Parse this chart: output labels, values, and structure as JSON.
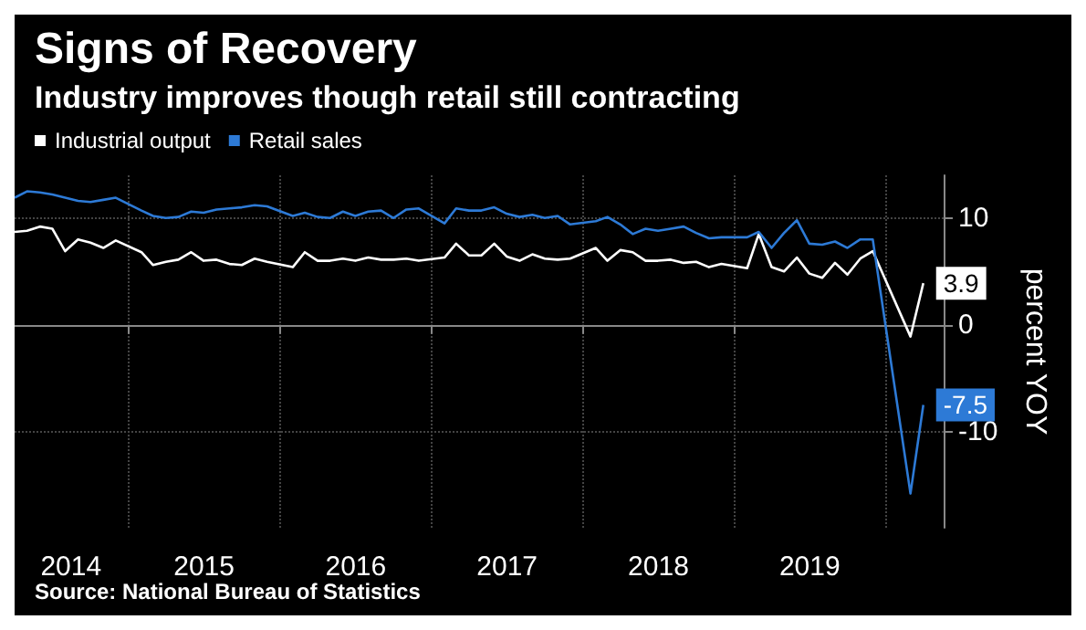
{
  "chart_data": {
    "type": "line",
    "title": "Signs of Recovery",
    "subtitle": "Industry improves though retail still contracting",
    "ylabel": "percent YOY",
    "x": [
      "2014-04",
      "2014-05",
      "2014-06",
      "2014-07",
      "2014-08",
      "2014-09",
      "2014-10",
      "2014-11",
      "2014-12",
      "2015-02",
      "2015-03",
      "2015-04",
      "2015-05",
      "2015-06",
      "2015-07",
      "2015-08",
      "2015-09",
      "2015-10",
      "2015-11",
      "2015-12",
      "2016-02",
      "2016-03",
      "2016-04",
      "2016-05",
      "2016-06",
      "2016-07",
      "2016-08",
      "2016-09",
      "2016-10",
      "2016-11",
      "2016-12",
      "2017-02",
      "2017-03",
      "2017-04",
      "2017-05",
      "2017-06",
      "2017-07",
      "2017-08",
      "2017-09",
      "2017-10",
      "2017-11",
      "2017-12",
      "2018-02",
      "2018-03",
      "2018-04",
      "2018-05",
      "2018-06",
      "2018-07",
      "2018-08",
      "2018-09",
      "2018-10",
      "2018-11",
      "2018-12",
      "2019-02",
      "2019-03",
      "2019-04",
      "2019-05",
      "2019-06",
      "2019-07",
      "2019-08",
      "2019-09",
      "2019-10",
      "2019-11",
      "2019-12",
      "2020-03",
      "2020-04"
    ],
    "series": [
      {
        "name": "Industrial output",
        "color": "#ffffff",
        "values": [
          8.7,
          8.8,
          9.2,
          9.0,
          6.9,
          8.0,
          7.7,
          7.2,
          7.9,
          6.8,
          5.6,
          5.9,
          6.1,
          6.8,
          6.0,
          6.1,
          5.7,
          5.6,
          6.2,
          5.9,
          5.4,
          6.8,
          6.0,
          6.0,
          6.2,
          6.0,
          6.3,
          6.1,
          6.1,
          6.2,
          6.0,
          6.3,
          7.6,
          6.5,
          6.5,
          7.6,
          6.4,
          6.0,
          6.6,
          6.2,
          6.1,
          6.2,
          7.2,
          6.0,
          7.0,
          6.8,
          6.0,
          6.0,
          6.1,
          5.8,
          5.9,
          5.4,
          5.7,
          5.3,
          8.5,
          5.4,
          5.0,
          6.3,
          4.8,
          4.4,
          5.8,
          4.7,
          6.2,
          6.9,
          -1.1,
          3.9
        ],
        "value_labels": [
          null,
          null,
          null,
          null,
          null,
          null,
          null,
          null,
          null,
          null,
          null,
          null,
          null,
          null,
          null,
          null,
          null,
          null,
          null,
          null,
          null,
          null,
          null,
          null,
          null,
          null,
          null,
          null,
          null,
          null,
          null,
          null,
          null,
          null,
          null,
          null,
          null,
          null,
          null,
          null,
          null,
          null,
          null,
          null,
          null,
          null,
          null,
          null,
          null,
          null,
          null,
          null,
          null,
          null,
          null,
          null,
          null,
          null,
          null,
          null,
          null,
          null,
          null,
          null,
          null,
          "3.9"
        ]
      },
      {
        "name": "Retail sales",
        "color": "#2d7ad6",
        "values": [
          11.9,
          12.5,
          12.4,
          12.2,
          11.9,
          11.6,
          11.5,
          11.7,
          11.9,
          10.7,
          10.2,
          10.0,
          10.1,
          10.6,
          10.5,
          10.8,
          10.9,
          11.0,
          11.2,
          11.1,
          10.2,
          10.5,
          10.1,
          10.0,
          10.6,
          10.2,
          10.6,
          10.7,
          10.0,
          10.8,
          10.9,
          9.5,
          10.9,
          10.7,
          10.7,
          11.0,
          10.4,
          10.1,
          10.3,
          10.0,
          10.2,
          9.4,
          9.7,
          10.1,
          9.4,
          8.5,
          9.0,
          8.8,
          9.0,
          9.2,
          8.6,
          8.1,
          8.2,
          8.2,
          8.7,
          7.2,
          8.6,
          9.8,
          7.6,
          7.5,
          7.8,
          7.2,
          8.0,
          8.0,
          -15.8,
          -7.5
        ],
        "value_labels": [
          null,
          null,
          null,
          null,
          null,
          null,
          null,
          null,
          null,
          null,
          null,
          null,
          null,
          null,
          null,
          null,
          null,
          null,
          null,
          null,
          null,
          null,
          null,
          null,
          null,
          null,
          null,
          null,
          null,
          null,
          null,
          null,
          null,
          null,
          null,
          null,
          null,
          null,
          null,
          null,
          null,
          null,
          null,
          null,
          null,
          null,
          null,
          null,
          null,
          null,
          null,
          null,
          null,
          null,
          null,
          null,
          null,
          null,
          null,
          null,
          null,
          null,
          null,
          null,
          null,
          "-7.5"
        ]
      }
    ],
    "xlim": [
      "2014-04-01",
      "2020-05-20"
    ],
    "xticks": [
      {
        "value": "2014-08-15",
        "label": "2014"
      },
      {
        "value": "2015-01-01",
        "label": null
      },
      {
        "value": "2015-07-02",
        "label": "2015"
      },
      {
        "value": "2016-01-01",
        "label": null
      },
      {
        "value": "2016-07-02",
        "label": "2016"
      },
      {
        "value": "2017-01-01",
        "label": null
      },
      {
        "value": "2017-07-02",
        "label": "2017"
      },
      {
        "value": "2018-01-01",
        "label": null
      },
      {
        "value": "2018-07-02",
        "label": "2018"
      },
      {
        "value": "2019-01-01",
        "label": null
      },
      {
        "value": "2019-07-02",
        "label": "2019"
      },
      {
        "value": "2020-01-01",
        "label": null
      }
    ],
    "ylim": [
      -19,
      14
    ],
    "yticks": [
      10,
      0,
      -10
    ],
    "grid": true,
    "legend": "top left",
    "annotations": [
      "Source: National Bureau of Statistics"
    ]
  }
}
